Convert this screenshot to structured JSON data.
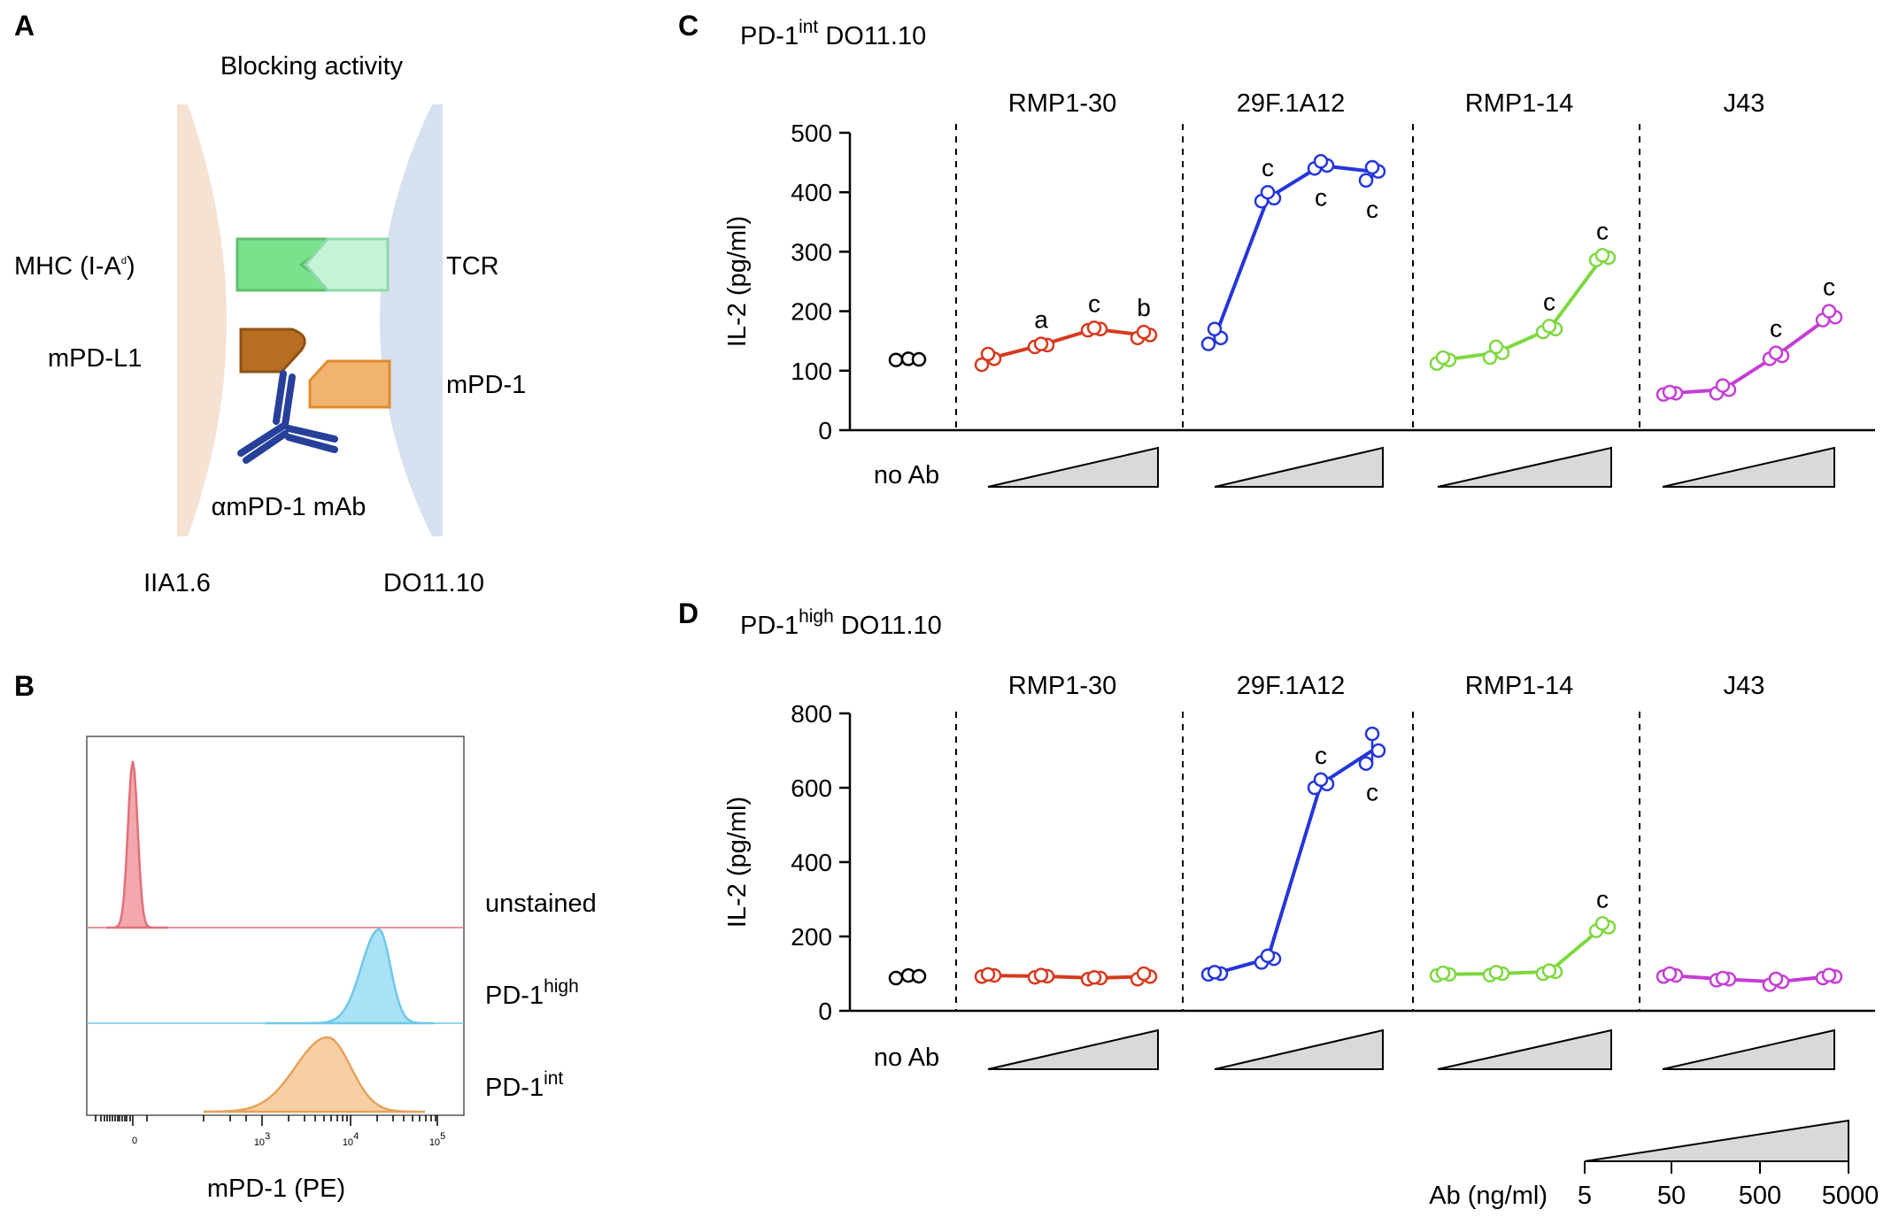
{
  "panels": {
    "a": {
      "letter": "A",
      "title": "Blocking activity",
      "mhc": "MHC (I-A",
      "mhc_sup": "d",
      "mhc_close": ")",
      "tcr": "TCR",
      "mpdl1": "mPD-L1",
      "mpd1": "mPD-1",
      "mab": "αmPD-1 mAb",
      "cell_left": "IIA1.6",
      "cell_right": "DO11.10",
      "colors": {
        "apc": "#f5e2d3",
        "tcell": "#d6e1f0",
        "mhc": "#78e28c",
        "tcr": "#c4f4d6",
        "pdl1": "#b86e22",
        "pd1": "#f0b470",
        "mab": "#27409a"
      }
    },
    "b": {
      "letter": "B",
      "xlabel": "mPD-1 (PE)",
      "ticks": [
        {
          "base": "0",
          "exp": ""
        },
        {
          "base": "10",
          "exp": "3"
        },
        {
          "base": "10",
          "exp": "4"
        },
        {
          "base": "10",
          "exp": "5"
        }
      ],
      "rows": [
        {
          "label": "unstained",
          "sup": "",
          "color": "#e0707a",
          "fill": "#f2a8ad"
        },
        {
          "label": "PD-1",
          "sup": "high",
          "color": "#6ec8e8",
          "fill": "#a9e2f6"
        },
        {
          "label": "PD-1",
          "sup": "int",
          "color": "#e8a15a",
          "fill": "#f7cfa3"
        }
      ]
    },
    "c": {
      "letter": "C",
      "title": "PD-1",
      "title_sup": "int",
      "title_rest": " DO11.10"
    },
    "d": {
      "letter": "D",
      "title": "PD-1",
      "title_sup": "high",
      "title_rest": " DO11.10"
    }
  },
  "legend": {
    "label": "Ab (ng/ml)",
    "values": [
      "5",
      "50",
      "500",
      "5000"
    ]
  },
  "chart_data": [
    {
      "type": "line",
      "title": "PD-1int DO11.10",
      "ylabel": "IL-2 (pg/ml)",
      "ylim": [
        0,
        500
      ],
      "yticks": [
        "0",
        "100",
        "200",
        "300",
        "400",
        "500"
      ],
      "no_ab_label": "no Ab",
      "no_ab": [
        118,
        120,
        119
      ],
      "concentrations": [
        "5",
        "50",
        "500",
        "5000"
      ],
      "series": [
        {
          "name": "RMP1-30",
          "color": "#d63a1e",
          "values": [
            120,
            143,
            170,
            160
          ],
          "points": [
            [
              110,
              128
            ],
            [
              140,
              145
            ],
            [
              168,
              172
            ],
            [
              155,
              165
            ]
          ],
          "sig": [
            "",
            "a",
            "c",
            "b"
          ]
        },
        {
          "name": "29F.1A12",
          "color": "#2436d8",
          "values": [
            155,
            390,
            445,
            435
          ],
          "points": [
            [
              145,
              170
            ],
            [
              385,
              400
            ],
            [
              440,
              452
            ],
            [
              420,
              442
            ]
          ],
          "sig": [
            "",
            "c",
            "c",
            "c"
          ]
        },
        {
          "name": "RMP1-14",
          "color": "#7dd83f",
          "values": [
            118,
            130,
            170,
            290
          ],
          "points": [
            [
              112,
              122
            ],
            [
              122,
              140
            ],
            [
              165,
              175
            ],
            [
              286,
              294
            ]
          ],
          "sig": [
            "",
            "",
            "c",
            "c"
          ]
        },
        {
          "name": "J43",
          "color": "#c43ed4",
          "values": [
            62,
            68,
            125,
            190
          ],
          "points": [
            [
              60,
              64
            ],
            [
              62,
              75
            ],
            [
              120,
              130
            ],
            [
              185,
              200
            ]
          ],
          "sig": [
            "",
            "",
            "c",
            "c"
          ]
        }
      ]
    },
    {
      "type": "line",
      "title": "PD-1high DO11.10",
      "ylabel": "IL-2 (pg/ml)",
      "ylim": [
        0,
        800
      ],
      "yticks": [
        "0",
        "200",
        "400",
        "600",
        "800"
      ],
      "no_ab_label": "no Ab",
      "no_ab": [
        88,
        95,
        93
      ],
      "concentrations": [
        "5",
        "50",
        "500",
        "5000"
      ],
      "series": [
        {
          "name": "RMP1-30",
          "color": "#d63a1e",
          "values": [
            95,
            93,
            88,
            92
          ],
          "points": [
            [
              92,
              98
            ],
            [
              90,
              96
            ],
            [
              85,
              90
            ],
            [
              85,
              100
            ]
          ],
          "sig": [
            "",
            "",
            "",
            ""
          ]
        },
        {
          "name": "29F.1A12",
          "color": "#2436d8",
          "values": [
            100,
            140,
            610,
            700
          ],
          "points": [
            [
              98,
              104
            ],
            [
              130,
              148
            ],
            [
              600,
              622
            ],
            [
              665,
              745
            ]
          ],
          "sig": [
            "",
            "",
            "c",
            "c"
          ]
        },
        {
          "name": "RMP1-14",
          "color": "#7dd83f",
          "values": [
            98,
            100,
            105,
            225
          ],
          "points": [
            [
              95,
              102
            ],
            [
              96,
              104
            ],
            [
              100,
              108
            ],
            [
              215,
              235
            ]
          ],
          "sig": [
            "",
            "",
            "",
            "c"
          ]
        },
        {
          "name": "J43",
          "color": "#c43ed4",
          "values": [
            95,
            85,
            78,
            92
          ],
          "points": [
            [
              92,
              100
            ],
            [
              82,
              88
            ],
            [
              70,
              86
            ],
            [
              88,
              96
            ]
          ],
          "sig": [
            "",
            "",
            "",
            ""
          ]
        }
      ]
    }
  ]
}
